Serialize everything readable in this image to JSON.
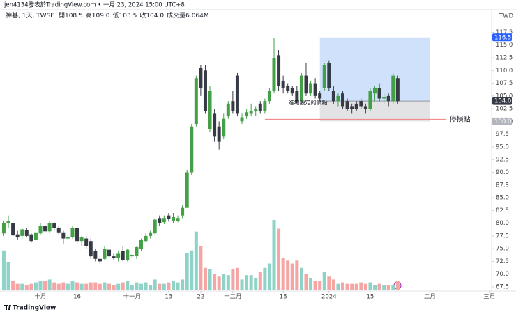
{
  "chart_data": {
    "type": "candlestick",
    "title": "jen4134發表於TradingView.com • 一月 23, 2024 15:00 UTC+8",
    "symbol": "神基, 1天, TWSE",
    "legend_values": [
      {
        "name": "開",
        "label": "108.5"
      },
      {
        "name": "高",
        "label": "109.0"
      },
      {
        "name": "低",
        "label": "103.5"
      },
      {
        "name": "收",
        "label": "104.0"
      },
      {
        "name": "成交量",
        "label": "6.064M"
      }
    ],
    "currency": "TWD",
    "brand": "TradingView",
    "open": [
      78.0,
      80.0,
      80.0,
      77.8,
      77.5,
      78.6,
      77.8,
      76.8,
      78.0,
      79.5,
      78.4,
      80.0,
      79.0,
      78.2,
      77.0,
      77.3,
      79.0,
      76.5,
      77.0,
      76.5,
      74.5,
      73.0,
      73.0,
      74.8,
      73.5,
      73.2,
      74.5,
      72.8,
      73.5,
      73.6,
      75.0,
      76.5,
      77.5,
      78.0,
      81.0,
      80.2,
      81.5,
      80.5,
      80.5,
      81.5,
      83.0,
      90.0,
      99.5,
      110.5,
      110.0,
      98.5,
      101.5,
      99.0,
      97.0,
      101.0,
      104.0,
      109.0,
      100.0,
      101.0,
      101.5,
      102.0,
      103.5,
      102.0,
      104.0,
      106.0,
      113.0,
      108.0,
      107.0,
      106.5,
      106.0,
      104.0,
      109.0,
      105.5,
      107.5,
      105.5,
      106.5,
      111.5,
      106.0,
      104.0,
      105.5,
      104.0,
      103.0,
      103.5,
      104.0,
      103.0,
      102.5,
      105.5,
      106.5,
      104.5,
      105.0,
      104.0,
      108.5
    ],
    "high": [
      80.5,
      81.5,
      80.5,
      78.5,
      79.2,
      79.0,
      78.0,
      78.5,
      80.0,
      80.0,
      80.5,
      80.2,
      79.5,
      78.5,
      78.0,
      79.5,
      79.2,
      77.5,
      77.5,
      77.0,
      75.0,
      73.5,
      75.5,
      75.0,
      74.0,
      74.5,
      75.5,
      75.0,
      74.0,
      75.5,
      77.0,
      78.0,
      78.5,
      81.0,
      81.5,
      81.5,
      82.0,
      82.0,
      81.5,
      83.5,
      90.5,
      99.5,
      109.0,
      111.0,
      111.0,
      107.0,
      102.5,
      100.0,
      101.5,
      104.0,
      106.0,
      109.5,
      101.5,
      102.5,
      103.5,
      103.0,
      104.0,
      104.5,
      106.5,
      116.4,
      114.0,
      109.0,
      107.5,
      107.0,
      107.0,
      109.5,
      111.5,
      108.0,
      108.5,
      106.0,
      111.5,
      112.0,
      107.0,
      105.5,
      106.0,
      104.5,
      103.5,
      104.0,
      104.5,
      103.5,
      106.5,
      107.0,
      107.5,
      105.5,
      105.5,
      109.5,
      109.0
    ],
    "low": [
      77.5,
      79.0,
      77.3,
      76.8,
      77.0,
      77.2,
      76.2,
      76.5,
      77.8,
      78.0,
      78.0,
      78.5,
      77.8,
      76.0,
      76.5,
      77.0,
      76.0,
      75.5,
      75.0,
      73.0,
      72.5,
      72.0,
      72.8,
      73.0,
      72.8,
      72.5,
      72.5,
      72.5,
      73.0,
      73.0,
      74.5,
      76.2,
      77.0,
      77.8,
      79.5,
      79.8,
      80.3,
      80.0,
      80.2,
      81.0,
      83.0,
      89.5,
      99.0,
      105.0,
      101.5,
      98.0,
      96.0,
      94.5,
      96.5,
      100.5,
      101.5,
      101.0,
      99.5,
      100.5,
      101.0,
      101.0,
      101.5,
      101.5,
      103.5,
      105.5,
      106.0,
      105.5,
      105.5,
      105.0,
      103.5,
      103.5,
      105.0,
      105.0,
      104.5,
      104.0,
      106.0,
      106.0,
      103.5,
      103.0,
      102.5,
      102.0,
      101.5,
      102.0,
      102.5,
      101.5,
      102.0,
      104.0,
      104.0,
      103.5,
      103.0,
      103.5,
      103.5
    ],
    "close": [
      80.0,
      80.5,
      77.6,
      77.2,
      78.8,
      77.5,
      76.5,
      78.2,
      79.5,
      78.4,
      80.0,
      79.0,
      78.2,
      77.0,
      77.3,
      79.0,
      76.5,
      77.2,
      75.5,
      73.5,
      73.0,
      72.5,
      75.0,
      73.5,
      73.2,
      74.0,
      72.8,
      74.8,
      73.8,
      75.3,
      76.8,
      77.5,
      78.2,
      80.7,
      80.0,
      81.0,
      80.8,
      81.2,
      81.0,
      83.0,
      90.0,
      99.0,
      108.5,
      106.5,
      102.0,
      106.0,
      97.0,
      96.0,
      100.5,
      103.5,
      102.0,
      101.5,
      100.8,
      101.8,
      102.0,
      102.5,
      102.0,
      104.0,
      106.0,
      112.5,
      107.0,
      106.5,
      106.0,
      105.5,
      104.0,
      109.0,
      105.5,
      107.5,
      105.0,
      104.5,
      111.0,
      106.5,
      104.0,
      105.0,
      103.0,
      102.5,
      102.5,
      102.5,
      103.0,
      102.5,
      106.0,
      106.5,
      104.5,
      104.8,
      104.0,
      109.0,
      104.0
    ],
    "volume": [
      27,
      19,
      6,
      4,
      4,
      3,
      4,
      5,
      6,
      6,
      7,
      5,
      4,
      5,
      4,
      6,
      5,
      4,
      4,
      5,
      5,
      4,
      5,
      4,
      3,
      4,
      5,
      6,
      3,
      5,
      4,
      5,
      3,
      7,
      4,
      4,
      5,
      6,
      5,
      7,
      25,
      27,
      40,
      30,
      15,
      14,
      11,
      9,
      11,
      10,
      14,
      15,
      7,
      10,
      10,
      8,
      12,
      15,
      18,
      48,
      42,
      22,
      20,
      18,
      20,
      15,
      11,
      8,
      6,
      6,
      12,
      9,
      7,
      4,
      5,
      4,
      4,
      4,
      5,
      4,
      5,
      3,
      4,
      3,
      3,
      3,
      6.064
    ],
    "last_label": "104.0",
    "up_color": "#43a047",
    "down_color": "#363a45",
    "volume_up_color": "#8fd3c8",
    "volume_down_color": "#f5a5a3",
    "xlim": [
      -0.83,
      106.5
    ],
    "ylim": [
      66.68,
      121.94
    ],
    "xticks": [
      {
        "value": 8,
        "label": "十月"
      },
      16,
      {
        "value": 28,
        "label": "十一月"
      },
      {
        "value": 36,
        "label": "13"
      },
      {
        "value": 43,
        "label": "22"
      },
      {
        "value": 50,
        "label": "十二月"
      },
      {
        "value": 61,
        "label": "18"
      },
      {
        "value": 71,
        "label": "2024"
      },
      {
        "value": 80,
        "label": "15"
      },
      {
        "value": 93,
        "label": "二月"
      },
      {
        "value": 106,
        "label": "三月"
      }
    ],
    "yticks": [
      117.5,
      {
        "value": 115,
        "label": "115.0"
      },
      112.5,
      {
        "value": 110,
        "label": "110.0"
      },
      107.5,
      {
        "value": 105,
        "label": "105.0"
      },
      102.5,
      {
        "value": 100,
        "label": "100.0"
      },
      97.5,
      {
        "value": 95,
        "label": "95.0"
      },
      92.5,
      {
        "value": 90,
        "label": "90.0"
      },
      87.5,
      {
        "value": 85,
        "label": "85.0"
      },
      82.5,
      {
        "value": 80,
        "label": "80.0"
      },
      77.5,
      {
        "value": 75,
        "label": "75.0"
      },
      72.5,
      {
        "value": 70,
        "label": "70.0"
      },
      67.5
    ],
    "position": {
      "x_start": 69.0,
      "x_end": 93.1,
      "target": {
        "value": 116.5,
        "label": "116.5"
      },
      "entry": 104.0,
      "stop": {
        "value": 100.0,
        "label": "100.0"
      },
      "profit_color": "#cfe1fb",
      "loss_color": "#e3e3e5"
    },
    "stop_line": {
      "y": 100.4,
      "x_start": 57.0,
      "x_end": 96.6,
      "color": "#f28b8b"
    },
    "annotations": [
      {
        "text": "進場設定的價點",
        "x": 66.4,
        "y": 103.7,
        "color": "#131722"
      },
      {
        "text": "停損點",
        "x": 97.3,
        "y": 100.4,
        "color": "#f23645"
      }
    ]
  }
}
